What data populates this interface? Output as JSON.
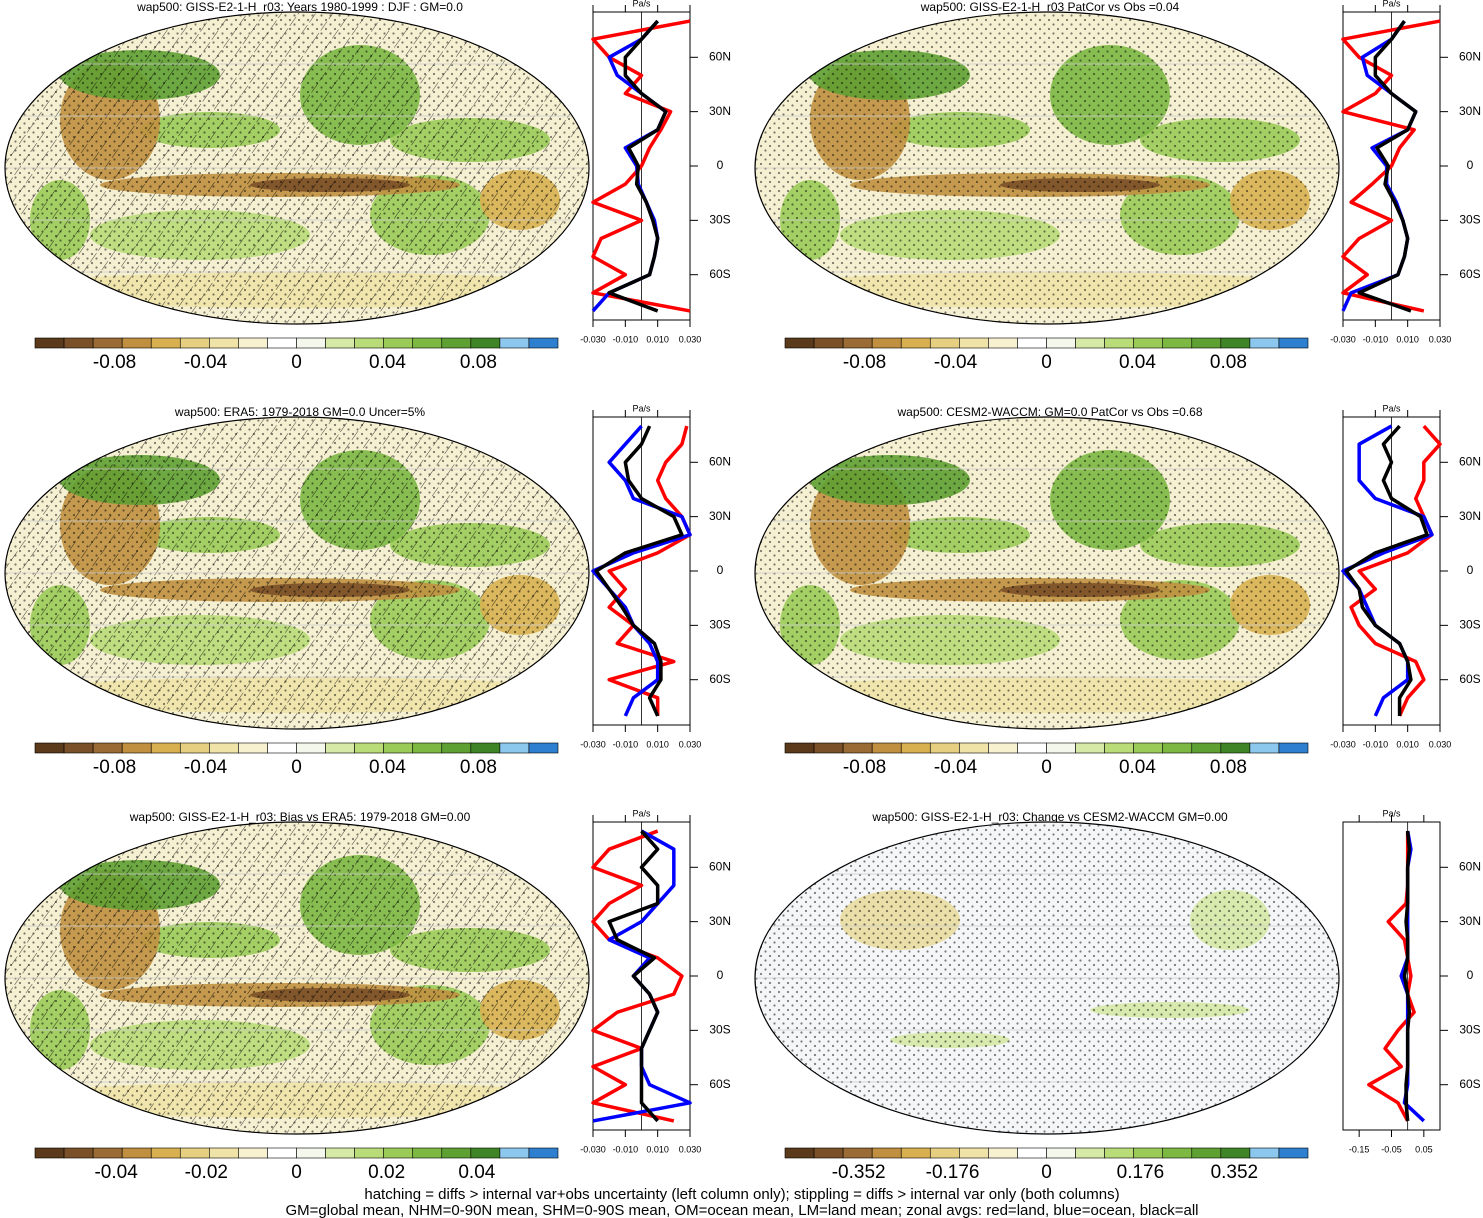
{
  "chart_data": [
    {
      "type": "map_profile",
      "title": "wap500: GISS-E2-1-H_r03: Years 1980-1999 : DJF : GM=0.0",
      "hatching": true,
      "colorbar": {
        "colors": [
          "#5a3a1a",
          "#7a5028",
          "#9b6b35",
          "#c09040",
          "#d8b050",
          "#e6cf80",
          "#efe3a8",
          "#f7f1d0",
          "#ffffff",
          "#f4f7ec",
          "#d6e9a6",
          "#b9dc78",
          "#9acb58",
          "#7cb842",
          "#5ea032",
          "#3f8426",
          "#8cc8ee",
          "#2f7fd0"
        ],
        "lim": [
          -0.115,
          0.115
        ],
        "ticks": [
          -0.08,
          -0.04,
          0,
          0.04,
          0.08
        ]
      },
      "profile": {
        "x_label": "Pa/s",
        "latitudes": [
          -80,
          -70,
          -60,
          -50,
          -40,
          -30,
          -20,
          -10,
          0,
          10,
          20,
          30,
          40,
          50,
          60,
          70,
          80
        ],
        "xlim": [
          -0.03,
          0.03
        ],
        "xticks": [
          {
            "value": -0.03,
            "label": "-0.030"
          },
          {
            "value": -0.01,
            "label": "-0.010"
          },
          {
            "value": 0.01,
            "label": "0.010"
          },
          {
            "value": 0.03,
            "label": "0.030"
          }
        ],
        "ylim": [
          -85,
          85
        ],
        "yticks": [
          {
            "value": 60,
            "label": "60N"
          },
          {
            "value": 30,
            "label": "30N"
          },
          0,
          {
            "value": -30,
            "label": "30S"
          },
          {
            "value": -60,
            "label": "60S"
          }
        ],
        "series": [
          {
            "color": "#ff0000",
            "values": [
              0.03,
              -0.03,
              -0.01,
              -0.03,
              -0.025,
              0.0,
              -0.03,
              -0.01,
              0.0,
              0.005,
              0.012,
              0.018,
              -0.01,
              0.0,
              -0.02,
              -0.03,
              0.03
            ]
          },
          {
            "color": "#0000ff",
            "values": [
              -0.03,
              -0.02,
              0.005,
              0.008,
              0.01,
              0.008,
              0.003,
              -0.002,
              -0.003,
              -0.01,
              0.01,
              0.015,
              0.0,
              -0.015,
              -0.02,
              0.0,
              0.01
            ]
          },
          {
            "color": "#000000",
            "values": [
              0.01,
              -0.02,
              0.005,
              0.008,
              0.01,
              0.007,
              0.003,
              -0.003,
              -0.002,
              -0.008,
              0.01,
              0.015,
              0.0,
              -0.01,
              -0.01,
              0.0,
              0.01
            ]
          }
        ]
      }
    },
    {
      "type": "map_profile",
      "title": "wap500: GISS-E2-1-H_r03 PatCor vs Obs =0.04",
      "hatching": false,
      "colorbar": {
        "colors": [
          "#5a3a1a",
          "#7a5028",
          "#9b6b35",
          "#c09040",
          "#d8b050",
          "#e6cf80",
          "#efe3a8",
          "#f7f1d0",
          "#ffffff",
          "#f4f7ec",
          "#d6e9a6",
          "#b9dc78",
          "#9acb58",
          "#7cb842",
          "#5ea032",
          "#3f8426",
          "#8cc8ee",
          "#2f7fd0"
        ],
        "lim": [
          -0.115,
          0.115
        ],
        "ticks": [
          -0.08,
          -0.04,
          0,
          0.04,
          0.08
        ]
      },
      "profile": {
        "x_label": "Pa/s",
        "latitudes": [
          -80,
          -70,
          -60,
          -50,
          -40,
          -30,
          -20,
          -10,
          0,
          10,
          20,
          30,
          40,
          50,
          60,
          70,
          80
        ],
        "xlim": [
          -0.03,
          0.03
        ],
        "xticks": [
          {
            "value": -0.03,
            "label": "-0.030"
          },
          {
            "value": -0.01,
            "label": "-0.010"
          },
          {
            "value": 0.01,
            "label": "0.010"
          },
          {
            "value": 0.03,
            "label": "0.030"
          }
        ],
        "ylim": [
          -85,
          85
        ],
        "yticks": [
          {
            "value": 60,
            "label": "60N"
          },
          {
            "value": 30,
            "label": "30N"
          },
          0,
          {
            "value": -30,
            "label": "30S"
          },
          {
            "value": -60,
            "label": "60S"
          }
        ],
        "series": [
          {
            "color": "#ff0000",
            "values": [
              0.02,
              -0.03,
              -0.015,
              -0.03,
              -0.02,
              0.0,
              -0.025,
              -0.012,
              0.0,
              0.005,
              0.014,
              -0.03,
              -0.01,
              0.0,
              -0.02,
              -0.03,
              0.03
            ]
          },
          {
            "color": "#0000ff",
            "values": [
              -0.03,
              -0.025,
              0.004,
              0.008,
              0.01,
              0.007,
              0.003,
              -0.003,
              -0.003,
              -0.012,
              0.01,
              0.015,
              0.0,
              -0.015,
              -0.018,
              0.0,
              0.008
            ]
          },
          {
            "color": "#000000",
            "values": [
              0.012,
              -0.02,
              0.004,
              0.008,
              0.01,
              0.007,
              0.002,
              -0.004,
              -0.002,
              -0.009,
              0.01,
              0.015,
              0.0,
              -0.01,
              -0.01,
              0.0,
              0.008
            ]
          }
        ]
      }
    },
    {
      "type": "map_profile",
      "title": "wap500: ERA5: 1979-2018 GM=0.0 Uncer=5%",
      "hatching": true,
      "colorbar": {
        "colors": [
          "#5a3a1a",
          "#7a5028",
          "#9b6b35",
          "#c09040",
          "#d8b050",
          "#e6cf80",
          "#efe3a8",
          "#f7f1d0",
          "#ffffff",
          "#f4f7ec",
          "#d6e9a6",
          "#b9dc78",
          "#9acb58",
          "#7cb842",
          "#5ea032",
          "#3f8426",
          "#8cc8ee",
          "#2f7fd0"
        ],
        "lim": [
          -0.115,
          0.115
        ],
        "ticks": [
          -0.08,
          -0.04,
          0,
          0.04,
          0.08
        ]
      },
      "profile": {
        "x_label": "Pa/s",
        "latitudes": [
          -80,
          -70,
          -60,
          -50,
          -40,
          -30,
          -20,
          -10,
          0,
          10,
          20,
          30,
          40,
          50,
          60,
          70,
          80
        ],
        "xlim": [
          -0.03,
          0.03
        ],
        "xticks": [
          {
            "value": -0.03,
            "label": "-0.030"
          },
          {
            "value": -0.01,
            "label": "-0.010"
          },
          {
            "value": 0.01,
            "label": "0.010"
          },
          {
            "value": 0.03,
            "label": "0.030"
          }
        ],
        "ylim": [
          -85,
          85
        ],
        "yticks": [
          {
            "value": 60,
            "label": "60N"
          },
          {
            "value": 30,
            "label": "30N"
          },
          0,
          {
            "value": -30,
            "label": "30S"
          },
          {
            "value": -60,
            "label": "60S"
          }
        ],
        "series": [
          {
            "color": "#ff0000",
            "values": [
              0.01,
              0.01,
              -0.02,
              0.02,
              -0.015,
              -0.005,
              -0.02,
              -0.01,
              -0.02,
              0.01,
              0.03,
              0.025,
              0.015,
              0.01,
              0.015,
              0.025,
              0.028
            ]
          },
          {
            "color": "#0000ff",
            "values": [
              -0.01,
              -0.005,
              0.01,
              0.01,
              0.005,
              -0.005,
              -0.01,
              -0.02,
              -0.03,
              -0.005,
              0.03,
              0.025,
              -0.005,
              -0.01,
              -0.02,
              -0.01,
              0.0
            ]
          },
          {
            "color": "#000000",
            "values": [
              0.01,
              0.005,
              0.012,
              0.012,
              0.008,
              -0.005,
              -0.012,
              -0.02,
              -0.028,
              -0.01,
              0.025,
              0.02,
              0.0,
              -0.008,
              -0.01,
              0.0,
              0.005
            ]
          }
        ]
      }
    },
    {
      "type": "map_profile",
      "title": "wap500: CESM2-WACCM: GM=0.0 PatCor vs Obs =0.68",
      "hatching": false,
      "colorbar": {
        "colors": [
          "#5a3a1a",
          "#7a5028",
          "#9b6b35",
          "#c09040",
          "#d8b050",
          "#e6cf80",
          "#efe3a8",
          "#f7f1d0",
          "#ffffff",
          "#f4f7ec",
          "#d6e9a6",
          "#b9dc78",
          "#9acb58",
          "#7cb842",
          "#5ea032",
          "#3f8426",
          "#8cc8ee",
          "#2f7fd0"
        ],
        "lim": [
          -0.115,
          0.115
        ],
        "ticks": [
          -0.08,
          -0.04,
          0,
          0.04,
          0.08
        ]
      },
      "profile": {
        "x_label": "Pa/s",
        "latitudes": [
          -80,
          -70,
          -60,
          -50,
          -40,
          -30,
          -20,
          -10,
          0,
          10,
          20,
          30,
          40,
          50,
          60,
          70,
          80
        ],
        "xlim": [
          -0.03,
          0.03
        ],
        "xticks": [
          {
            "value": -0.03,
            "label": "-0.030"
          },
          {
            "value": -0.01,
            "label": "-0.010"
          },
          {
            "value": 0.01,
            "label": "0.010"
          },
          {
            "value": 0.03,
            "label": "0.030"
          }
        ],
        "ylim": [
          -85,
          85
        ],
        "yticks": [
          {
            "value": 60,
            "label": "60N"
          },
          {
            "value": 30,
            "label": "30N"
          },
          0,
          {
            "value": -30,
            "label": "30S"
          },
          {
            "value": -60,
            "label": "60S"
          }
        ],
        "series": [
          {
            "color": "#ff0000",
            "values": [
              0.005,
              0.01,
              0.02,
              0.015,
              -0.01,
              -0.02,
              -0.025,
              -0.01,
              -0.02,
              0.01,
              0.025,
              0.02,
              0.015,
              0.02,
              0.02,
              0.03,
              0.02
            ]
          },
          {
            "color": "#0000ff",
            "values": [
              -0.01,
              -0.005,
              0.01,
              0.01,
              0.005,
              -0.01,
              -0.015,
              -0.02,
              -0.03,
              -0.005,
              0.025,
              0.02,
              -0.01,
              -0.02,
              -0.02,
              -0.02,
              0.0
            ]
          },
          {
            "color": "#000000",
            "values": [
              0.005,
              0.005,
              0.012,
              0.01,
              0.005,
              -0.01,
              -0.018,
              -0.02,
              -0.028,
              -0.01,
              0.022,
              0.018,
              0.0,
              -0.005,
              0.0,
              -0.005,
              0.005
            ]
          }
        ]
      }
    },
    {
      "type": "map_profile",
      "title": "wap500: GISS-E2-1-H_r03: Bias vs ERA5: 1979-2018 GM=0.00",
      "hatching": true,
      "colorbar": {
        "colors": [
          "#5a3a1a",
          "#7a5028",
          "#9b6b35",
          "#c09040",
          "#d8b050",
          "#e6cf80",
          "#efe3a8",
          "#f7f1d0",
          "#ffffff",
          "#f4f7ec",
          "#d6e9a6",
          "#b9dc78",
          "#9acb58",
          "#7cb842",
          "#5ea032",
          "#3f8426",
          "#8cc8ee",
          "#2f7fd0"
        ],
        "lim": [
          -0.058,
          0.058
        ],
        "ticks": [
          -0.04,
          -0.02,
          0,
          0.02,
          0.04
        ]
      },
      "profile": {
        "x_label": "Pa/s",
        "latitudes": [
          -80,
          -70,
          -60,
          -50,
          -40,
          -30,
          -20,
          -10,
          0,
          10,
          20,
          30,
          40,
          50,
          60,
          70,
          80
        ],
        "xlim": [
          -0.03,
          0.03
        ],
        "xticks": [
          {
            "value": -0.03,
            "label": "-0.030"
          },
          {
            "value": -0.01,
            "label": "-0.010"
          },
          {
            "value": 0.01,
            "label": "0.010"
          },
          {
            "value": 0.03,
            "label": "0.030"
          }
        ],
        "ylim": [
          -85,
          85
        ],
        "yticks": [
          {
            "value": 60,
            "label": "60N"
          },
          {
            "value": 30,
            "label": "30N"
          },
          0,
          {
            "value": -30,
            "label": "30S"
          },
          {
            "value": -60,
            "label": "60S"
          }
        ],
        "series": [
          {
            "color": "#ff0000",
            "values": [
              0.02,
              -0.03,
              -0.01,
              -0.03,
              0.0,
              -0.03,
              -0.015,
              0.02,
              0.025,
              0.01,
              -0.02,
              -0.03,
              -0.02,
              0.0,
              -0.03,
              -0.02,
              0.01
            ]
          },
          {
            "color": "#0000ff",
            "values": [
              -0.03,
              0.03,
              0.005,
              0.0,
              0.0,
              0.005,
              0.01,
              0.005,
              -0.005,
              0.005,
              -0.02,
              0.0,
              0.01,
              0.02,
              0.02,
              0.02,
              0.0
            ]
          },
          {
            "color": "#000000",
            "values": [
              0.01,
              0.0,
              0.0,
              0.0,
              0.0,
              0.005,
              0.01,
              0.005,
              -0.005,
              0.008,
              -0.015,
              -0.02,
              0.01,
              0.01,
              0.0,
              0.01,
              0.0
            ]
          }
        ]
      }
    },
    {
      "type": "map_profile",
      "title": "wap500: GISS-E2-1-H_r03: Change vs CESM2-WACCM GM=0.00",
      "hatching": false,
      "colorbar": {
        "colors": [
          "#5a3a1a",
          "#7a5028",
          "#9b6b35",
          "#c09040",
          "#d8b050",
          "#e6cf80",
          "#efe3a8",
          "#f7f1d0",
          "#ffffff",
          "#f4f7ec",
          "#d6e9a6",
          "#b9dc78",
          "#9acb58",
          "#7cb842",
          "#5ea032",
          "#3f8426",
          "#8cc8ee",
          "#2f7fd0"
        ],
        "lim": [
          -0.49,
          0.49
        ],
        "ticks": [
          -0.352,
          -0.176,
          0,
          0.176,
          0.352
        ]
      },
      "profile": {
        "x_label": "Pa/s",
        "latitudes": [
          -80,
          -70,
          -60,
          -50,
          -40,
          -30,
          -20,
          -10,
          0,
          10,
          20,
          30,
          40,
          50,
          60,
          70,
          80
        ],
        "xlim": [
          -0.2,
          0.1
        ],
        "xticks": [
          -0.15,
          -0.05,
          0.05
        ],
        "ylim": [
          -85,
          85
        ],
        "yticks": [
          {
            "value": 60,
            "label": "60N"
          },
          {
            "value": 30,
            "label": "30N"
          },
          0,
          {
            "value": -30,
            "label": "30S"
          },
          {
            "value": -60,
            "label": "60S"
          }
        ],
        "series": [
          {
            "color": "#ff0000",
            "values": [
              0.0,
              -0.03,
              -0.12,
              -0.02,
              -0.07,
              -0.03,
              0.02,
              0.0,
              0.01,
              0.0,
              -0.01,
              -0.06,
              -0.005,
              0.0,
              0.0,
              0.0,
              0.0
            ]
          },
          {
            "color": "#0000ff",
            "values": [
              0.05,
              -0.01,
              0.0,
              0.0,
              0.0,
              0.0,
              0.0,
              0.0,
              -0.02,
              0.0,
              0.0,
              0.0,
              0.0,
              0.0,
              0.0,
              0.01,
              0.0
            ]
          },
          {
            "color": "#000000",
            "values": [
              0.0,
              -0.005,
              -0.005,
              0.0,
              0.0,
              0.0,
              0.005,
              0.0,
              -0.01,
              0.0,
              0.0,
              -0.005,
              0.0,
              0.0,
              0.0,
              0.005,
              0.0
            ]
          }
        ]
      }
    }
  ],
  "footer": [
    "hatching = diffs > internal var+obs uncertainty (left column only); stippling = diffs > internal var only (both columns)",
    "GM=global mean, NHM=0-90N mean, SHM=0-90S mean, OM=ocean mean, LM=land mean; zonal avgs: red=land, blue=ocean, black=all"
  ]
}
